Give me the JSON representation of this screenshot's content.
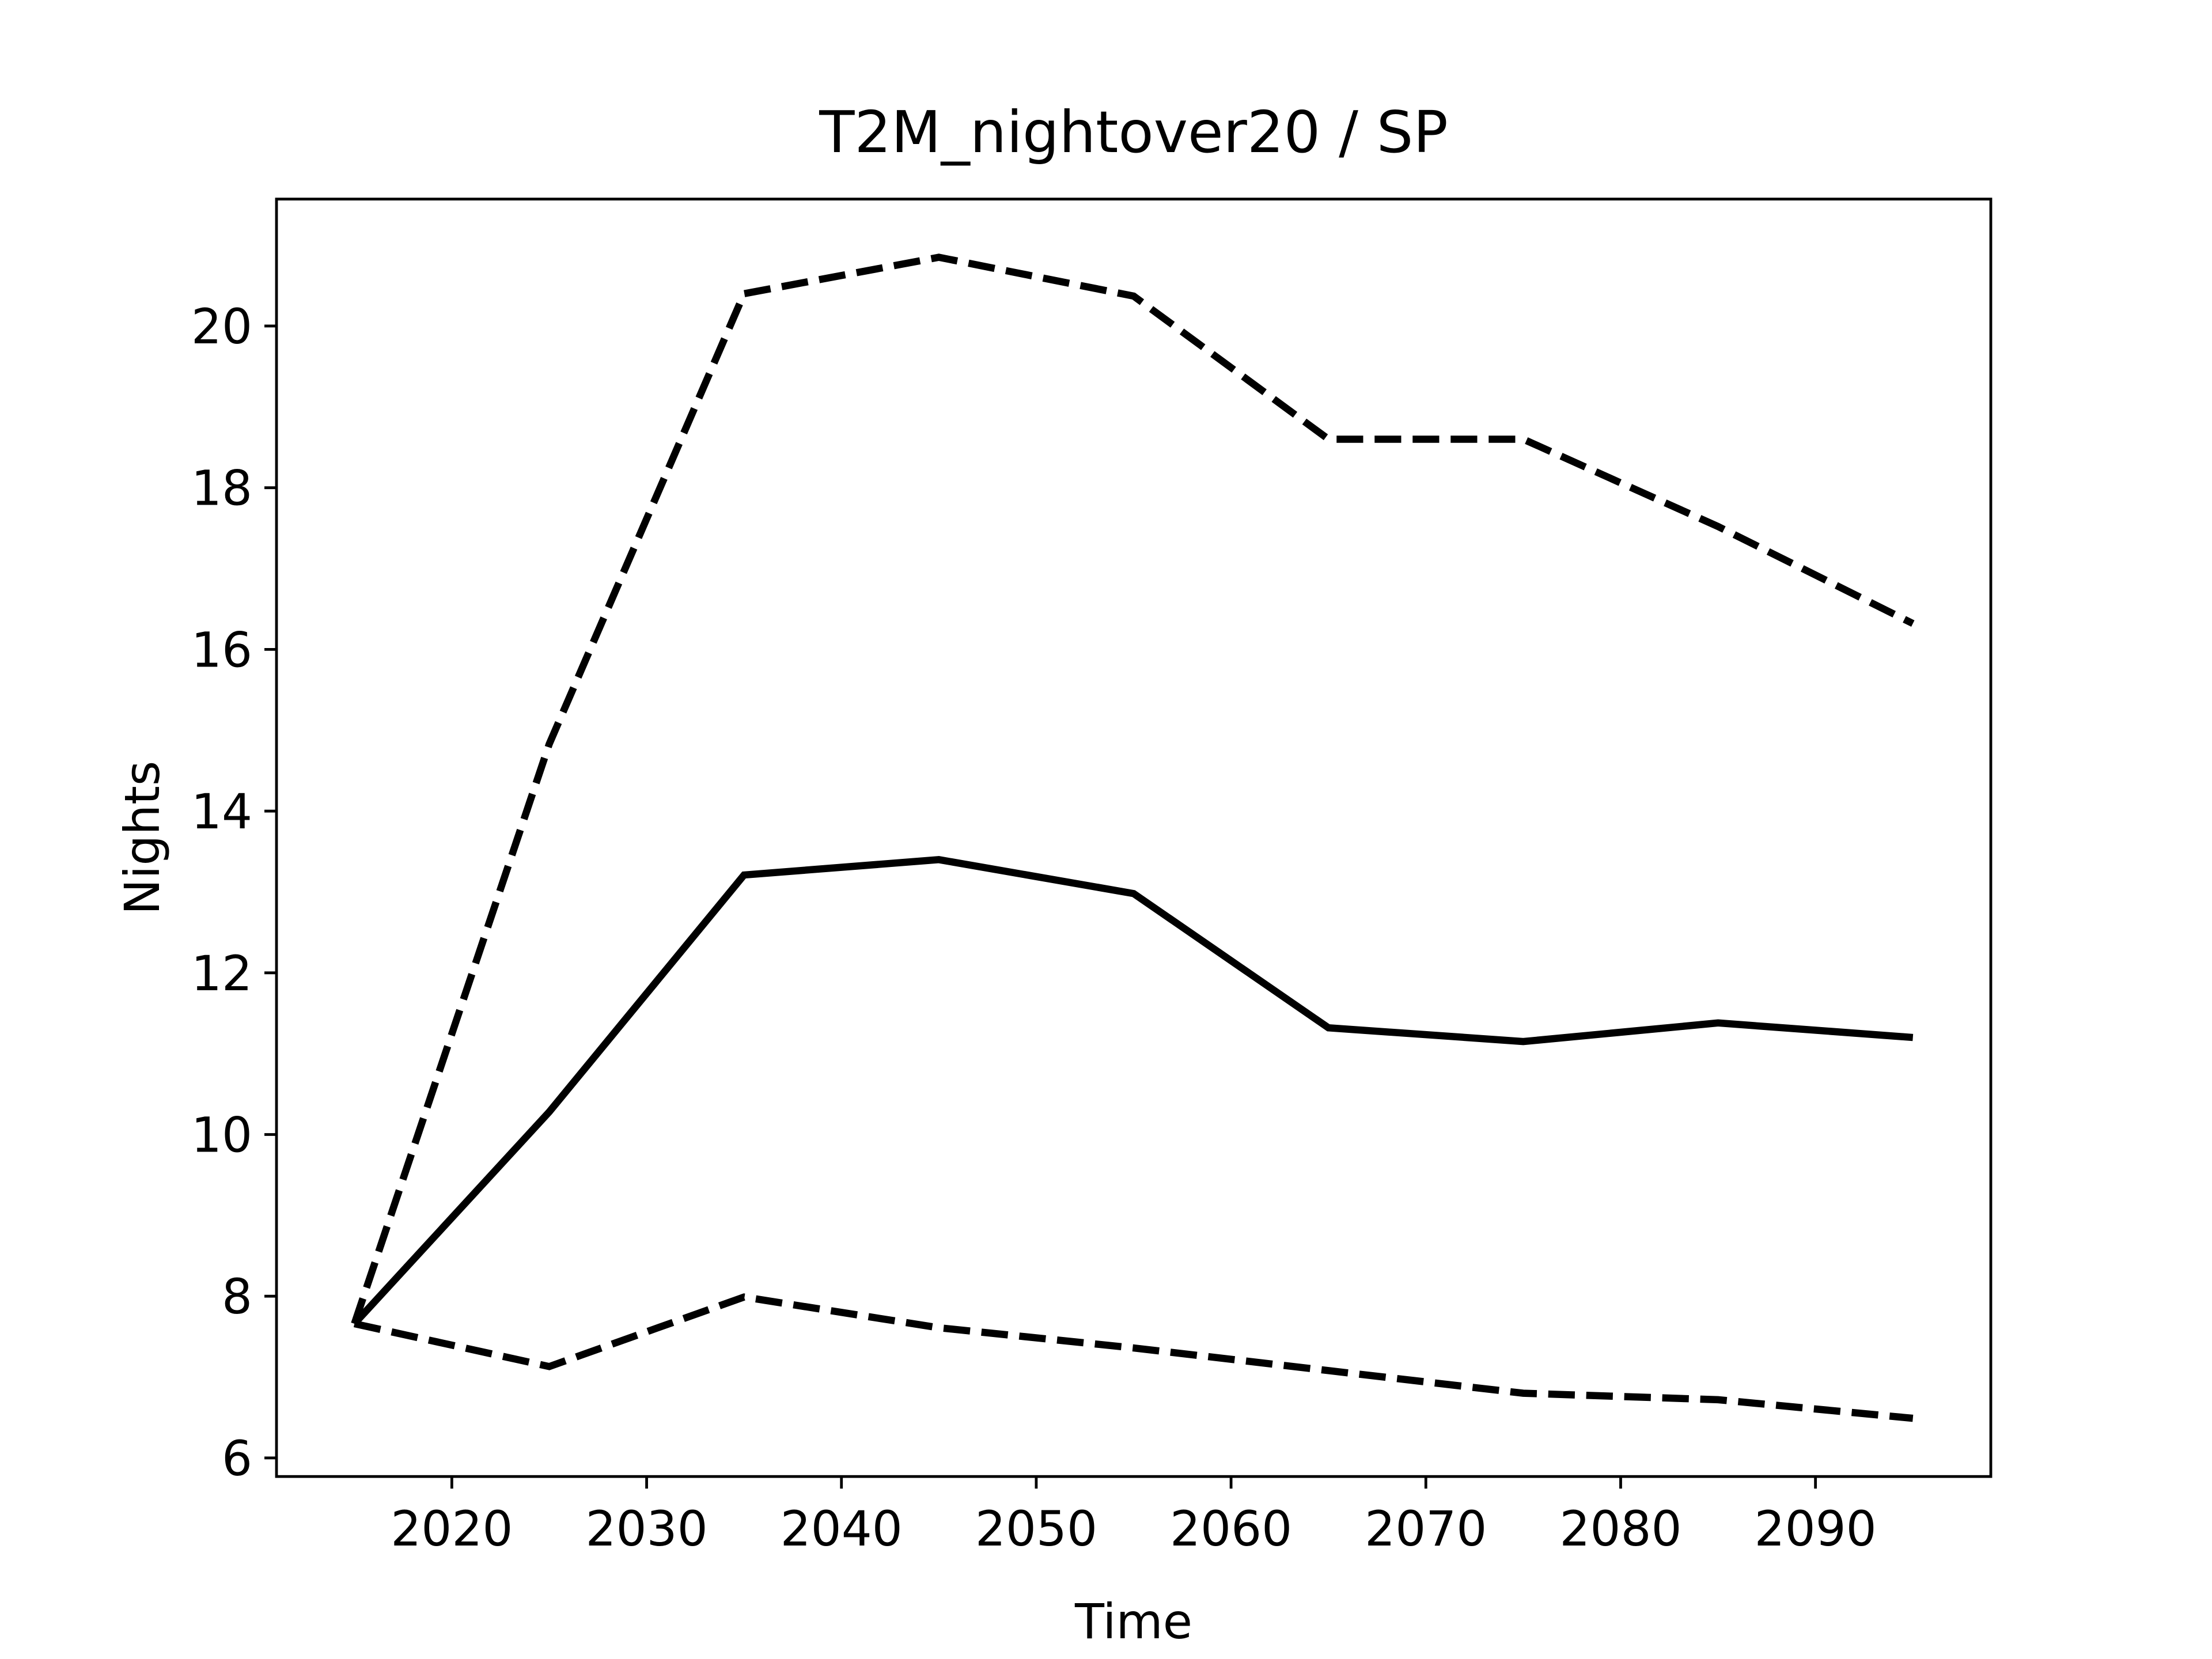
{
  "chart_data": {
    "type": "line",
    "title": "T2M_nightover20 / SP",
    "x_label": "Time",
    "y_label": "Nights",
    "x": [
      2015,
      2025,
      2035,
      2045,
      2055,
      2065,
      2075,
      2085,
      2095
    ],
    "series": [
      {
        "color": "#000000",
        "linestyle": "dashed",
        "values": [
          7.66,
          14.83,
          20.4,
          20.85,
          20.37,
          18.6,
          18.6,
          17.52,
          16.32
        ]
      },
      {
        "color": "#000000",
        "linestyle": "solid",
        "values": [
          7.66,
          10.28,
          13.21,
          13.4,
          12.98,
          11.32,
          11.15,
          11.38,
          11.2
        ]
      },
      {
        "color": "#000000",
        "linestyle": "dashed",
        "values": [
          7.66,
          7.13,
          7.99,
          7.61,
          7.36,
          7.08,
          6.8,
          6.72,
          6.49
        ]
      }
    ],
    "xlim": [
      2011,
      2099
    ],
    "ylim": [
      5.77,
      21.57
    ],
    "xticks": [
      2020,
      2030,
      2040,
      2050,
      2060,
      2070,
      2080,
      2090
    ],
    "yticks": [
      6,
      8,
      10,
      12,
      14,
      16,
      18,
      20
    ],
    "grid": false
  }
}
